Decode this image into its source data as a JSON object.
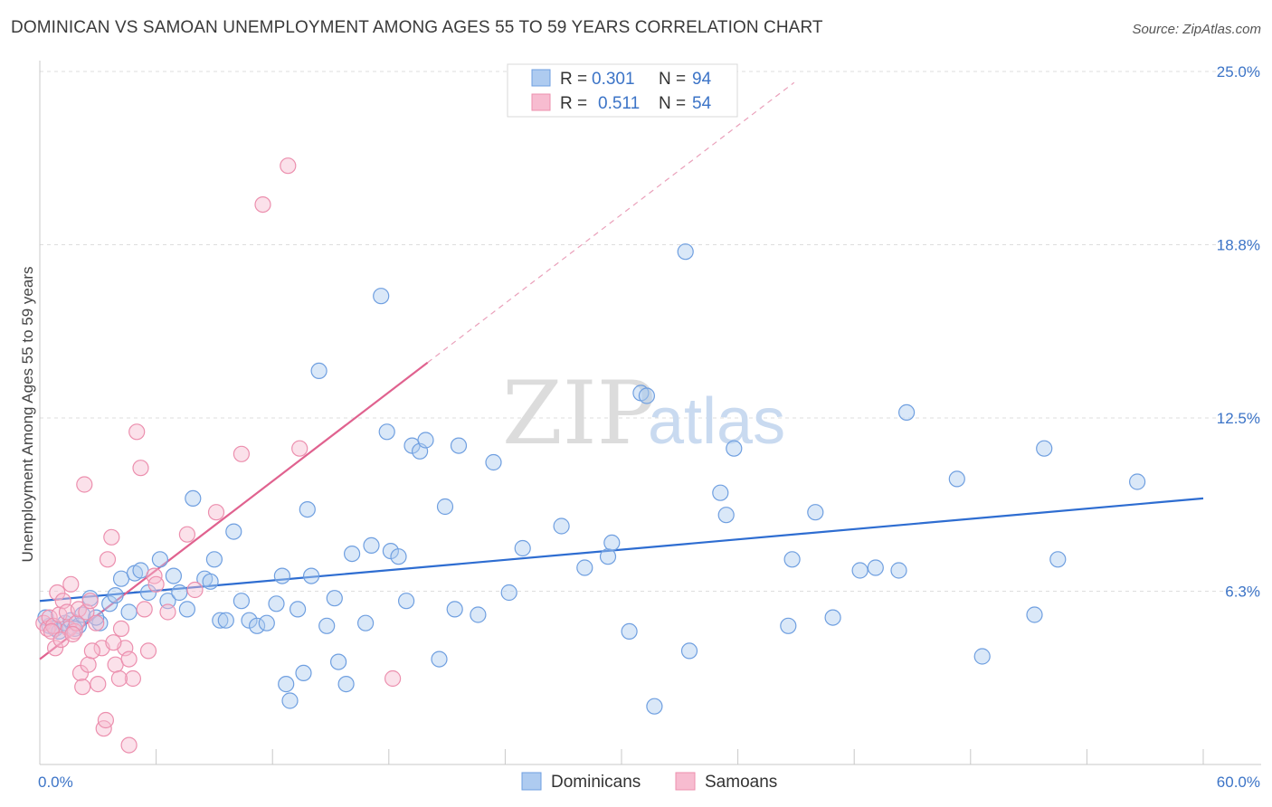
{
  "title": "DOMINICAN VS SAMOAN UNEMPLOYMENT AMONG AGES 55 TO 59 YEARS CORRELATION CHART",
  "source": "Source: ZipAtlas.com",
  "watermark": {
    "zip": "ZIP",
    "atlas": "atlas"
  },
  "legend": {
    "rows": [
      {
        "r_label": "R =",
        "r_value": "0.301",
        "n_label": "N =",
        "n_value": "94",
        "color": "#aecbf0"
      },
      {
        "r_label": "R =",
        "r_value": "0.511",
        "n_label": "N =",
        "n_value": "54",
        "color": "#f7bcd0"
      }
    ]
  },
  "bottom_legend": [
    "Dominicans",
    "Samoans"
  ],
  "chart_data": {
    "type": "scatter",
    "title": "DOMINICAN VS SAMOAN UNEMPLOYMENT AMONG AGES 55 TO 59 YEARS CORRELATION CHART",
    "xlabel": "",
    "ylabel": "Unemployment Among Ages 55 to 59 years",
    "xlim": [
      0,
      60
    ],
    "ylim": [
      0,
      25
    ],
    "x_tick_labels": [
      "0.0%",
      "60.0%"
    ],
    "y_tick_labels": [
      "6.3%",
      "12.5%",
      "18.8%",
      "25.0%"
    ],
    "y_ticks": [
      6.25,
      12.5,
      18.75,
      25.0
    ],
    "grid": true,
    "legend_position": "top-center",
    "series": [
      {
        "name": "Dominicans",
        "color": "#6f9fe0",
        "fill": "#aecbf0",
        "R": 0.301,
        "N": 94,
        "trend": {
          "x": [
            0,
            60
          ],
          "y": [
            5.9,
            9.6
          ]
        },
        "points": [
          [
            0.5,
            5.0
          ],
          [
            0.8,
            4.9
          ],
          [
            1.0,
            4.8
          ],
          [
            1.3,
            5.1
          ],
          [
            1.6,
            5.2
          ],
          [
            2.0,
            5.0
          ],
          [
            2.2,
            5.4
          ],
          [
            2.6,
            6.0
          ],
          [
            3.1,
            5.1
          ],
          [
            3.6,
            5.8
          ],
          [
            3.9,
            6.1
          ],
          [
            4.2,
            6.7
          ],
          [
            4.6,
            5.5
          ],
          [
            4.9,
            6.9
          ],
          [
            5.2,
            7.0
          ],
          [
            5.6,
            6.2
          ],
          [
            6.2,
            7.4
          ],
          [
            6.6,
            5.9
          ],
          [
            6.9,
            6.8
          ],
          [
            7.2,
            6.2
          ],
          [
            7.6,
            5.6
          ],
          [
            7.9,
            9.6
          ],
          [
            8.5,
            6.7
          ],
          [
            8.8,
            6.6
          ],
          [
            9.0,
            7.4
          ],
          [
            9.3,
            5.2
          ],
          [
            9.6,
            5.2
          ],
          [
            10.0,
            8.4
          ],
          [
            10.4,
            5.9
          ],
          [
            10.8,
            5.2
          ],
          [
            11.2,
            5.0
          ],
          [
            11.7,
            5.1
          ],
          [
            12.2,
            5.8
          ],
          [
            12.5,
            6.8
          ],
          [
            12.7,
            2.9
          ],
          [
            12.9,
            2.3
          ],
          [
            13.3,
            5.6
          ],
          [
            13.6,
            3.3
          ],
          [
            13.8,
            9.2
          ],
          [
            14.0,
            6.8
          ],
          [
            14.4,
            14.2
          ],
          [
            14.8,
            5.0
          ],
          [
            15.2,
            6.0
          ],
          [
            15.4,
            3.7
          ],
          [
            15.8,
            2.9
          ],
          [
            16.1,
            7.6
          ],
          [
            16.8,
            5.1
          ],
          [
            17.1,
            7.9
          ],
          [
            17.6,
            16.9
          ],
          [
            17.9,
            12.0
          ],
          [
            18.1,
            7.7
          ],
          [
            18.5,
            7.5
          ],
          [
            18.9,
            5.9
          ],
          [
            19.2,
            11.5
          ],
          [
            19.6,
            11.3
          ],
          [
            19.9,
            11.7
          ],
          [
            20.9,
            9.3
          ],
          [
            20.6,
            3.8
          ],
          [
            21.6,
            11.5
          ],
          [
            21.4,
            5.6
          ],
          [
            22.6,
            5.4
          ],
          [
            23.4,
            10.9
          ],
          [
            24.2,
            6.2
          ],
          [
            24.9,
            7.8
          ],
          [
            26.9,
            8.6
          ],
          [
            28.1,
            7.1
          ],
          [
            29.3,
            7.5
          ],
          [
            29.5,
            8.0
          ],
          [
            30.4,
            4.8
          ],
          [
            31.0,
            13.4
          ],
          [
            31.3,
            13.3
          ],
          [
            31.7,
            2.1
          ],
          [
            33.3,
            18.5
          ],
          [
            33.5,
            4.1
          ],
          [
            35.1,
            9.8
          ],
          [
            35.4,
            9.0
          ],
          [
            35.8,
            11.4
          ],
          [
            38.8,
            7.4
          ],
          [
            38.6,
            5.0
          ],
          [
            40.0,
            9.1
          ],
          [
            40.9,
            5.3
          ],
          [
            42.3,
            7.0
          ],
          [
            43.1,
            7.1
          ],
          [
            44.3,
            7.0
          ],
          [
            44.7,
            12.7
          ],
          [
            47.3,
            10.3
          ],
          [
            48.6,
            3.9
          ],
          [
            51.3,
            5.4
          ],
          [
            51.8,
            11.4
          ],
          [
            52.5,
            7.4
          ],
          [
            56.6,
            10.2
          ],
          [
            0.3,
            5.3
          ],
          [
            1.8,
            4.9
          ],
          [
            2.9,
            5.3
          ]
        ]
      },
      {
        "name": "Samoans",
        "color": "#ec8fae",
        "fill": "#f7bcd0",
        "R": 0.511,
        "N": 54,
        "trend": {
          "x": [
            0,
            20
          ],
          "y": [
            3.8,
            14.5
          ]
        },
        "trend_dashed": {
          "x": [
            20,
            38.9
          ],
          "y": [
            14.5,
            24.6
          ]
        },
        "points": [
          [
            0.2,
            5.1
          ],
          [
            0.4,
            4.9
          ],
          [
            0.5,
            5.3
          ],
          [
            0.7,
            5.0
          ],
          [
            0.8,
            4.2
          ],
          [
            0.9,
            6.2
          ],
          [
            1.0,
            5.4
          ],
          [
            1.2,
            5.9
          ],
          [
            1.4,
            5.5
          ],
          [
            1.5,
            4.9
          ],
          [
            1.6,
            6.5
          ],
          [
            1.8,
            4.8
          ],
          [
            1.9,
            5.1
          ],
          [
            2.0,
            5.6
          ],
          [
            2.1,
            3.3
          ],
          [
            2.2,
            2.8
          ],
          [
            2.3,
            10.1
          ],
          [
            2.4,
            5.5
          ],
          [
            2.5,
            3.6
          ],
          [
            2.6,
            5.9
          ],
          [
            2.9,
            5.1
          ],
          [
            3.2,
            4.2
          ],
          [
            3.5,
            7.4
          ],
          [
            3.7,
            8.2
          ],
          [
            3.9,
            3.6
          ],
          [
            4.2,
            4.9
          ],
          [
            4.4,
            4.2
          ],
          [
            4.6,
            3.8
          ],
          [
            4.8,
            3.1
          ],
          [
            5.0,
            12.0
          ],
          [
            5.2,
            10.7
          ],
          [
            5.4,
            5.6
          ],
          [
            5.6,
            4.1
          ],
          [
            5.9,
            6.8
          ],
          [
            6.0,
            6.5
          ],
          [
            6.6,
            5.5
          ],
          [
            7.6,
            8.3
          ],
          [
            8.0,
            6.3
          ],
          [
            9.1,
            9.1
          ],
          [
            10.4,
            11.2
          ],
          [
            11.5,
            20.2
          ],
          [
            12.8,
            21.6
          ],
          [
            13.4,
            11.4
          ],
          [
            18.2,
            3.1
          ],
          [
            3.0,
            2.9
          ],
          [
            3.3,
            1.3
          ],
          [
            3.4,
            1.6
          ],
          [
            4.1,
            3.1
          ],
          [
            4.6,
            0.7
          ],
          [
            0.6,
            4.8
          ],
          [
            1.1,
            4.5
          ],
          [
            1.7,
            4.7
          ],
          [
            2.7,
            4.1
          ],
          [
            3.8,
            4.4
          ]
        ]
      }
    ]
  }
}
